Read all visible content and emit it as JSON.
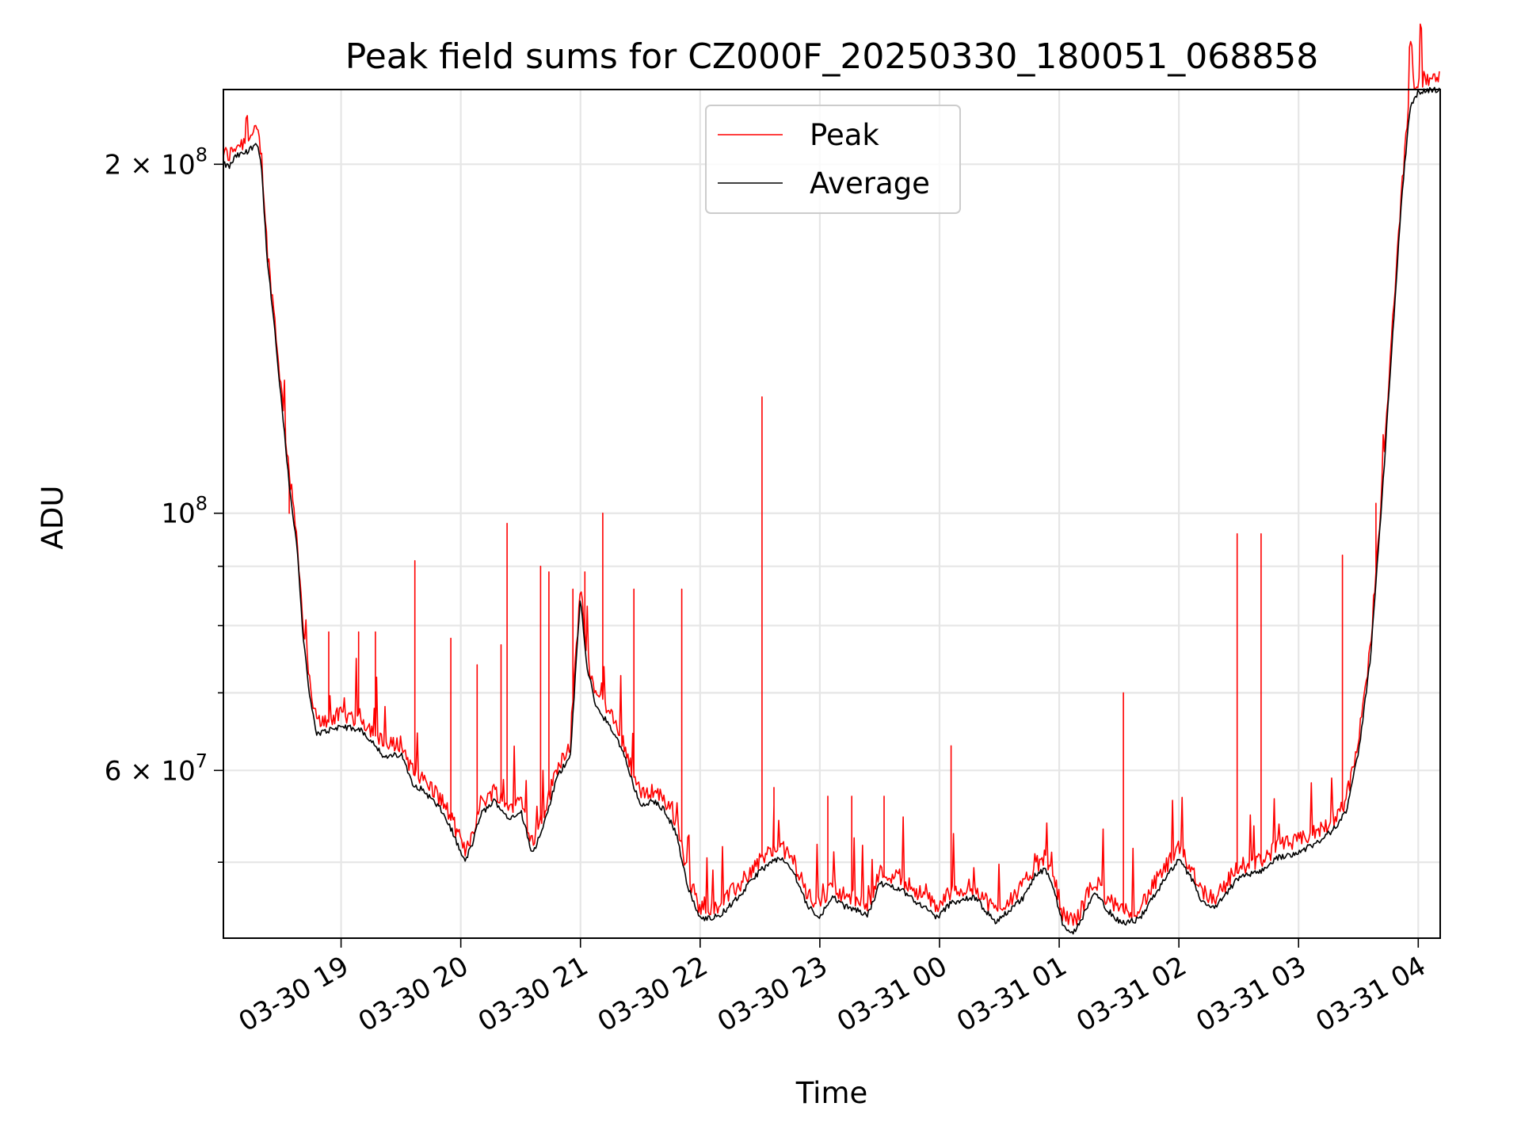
{
  "chart_data": {
    "type": "line",
    "title": "Peak field sums for CZ000F_20250330_180051_068858",
    "xlabel": "Time",
    "ylabel": "ADU",
    "y_scale": "log",
    "ylim": [
      43000000,
      232000000
    ],
    "xlim": [
      "2025-03-30 18:01",
      "2025-03-31 04:11"
    ],
    "x_ticks": [
      {
        "label": "03-30 19",
        "time": "2025-03-30 19:00"
      },
      {
        "label": "03-30 20",
        "time": "2025-03-30 20:00"
      },
      {
        "label": "03-30 21",
        "time": "2025-03-30 21:00"
      },
      {
        "label": "03-30 22",
        "time": "2025-03-30 22:00"
      },
      {
        "label": "03-30 23",
        "time": "2025-03-30 23:00"
      },
      {
        "label": "03-31 00",
        "time": "2025-03-31 00:00"
      },
      {
        "label": "03-31 01",
        "time": "2025-03-31 01:00"
      },
      {
        "label": "03-31 02",
        "time": "2025-03-31 02:00"
      },
      {
        "label": "03-31 03",
        "time": "2025-03-31 03:00"
      },
      {
        "label": "03-31 04",
        "time": "2025-03-31 04:00"
      }
    ],
    "y_major_ticks": [
      {
        "value": 60000000,
        "mantissa": "6",
        "exponent": "7"
      },
      {
        "value": 100000000,
        "mantissa": "",
        "exponent": "8"
      },
      {
        "value": 200000000,
        "mantissa": "2",
        "exponent": "8"
      }
    ],
    "y_minor_ticks": [
      50000000,
      70000000,
      80000000,
      90000000
    ],
    "grid": true,
    "legend": {
      "placement": "top-center",
      "entries": [
        {
          "name": "Peak",
          "color": "#ff0000"
        },
        {
          "name": "Average",
          "color": "#000000"
        }
      ]
    },
    "series": [
      {
        "name": "Average",
        "color": "#000000",
        "points": [
          [
            "2025-03-30 18:01",
            200000000
          ],
          [
            "2025-03-30 18:04",
            199000000
          ],
          [
            "2025-03-30 18:07",
            203000000
          ],
          [
            "2025-03-30 18:13",
            205000000
          ],
          [
            "2025-03-30 18:18",
            209000000
          ],
          [
            "2025-03-30 18:20",
            200000000
          ],
          [
            "2025-03-30 18:23",
            165000000
          ],
          [
            "2025-03-30 18:26",
            148000000
          ],
          [
            "2025-03-30 18:30",
            125000000
          ],
          [
            "2025-03-30 18:34",
            106000000
          ],
          [
            "2025-03-30 18:38",
            93000000
          ],
          [
            "2025-03-30 18:41",
            78000000
          ],
          [
            "2025-03-30 18:45",
            68000000
          ],
          [
            "2025-03-30 18:48",
            64500000
          ],
          [
            "2025-03-30 19:00",
            65500000
          ],
          [
            "2025-03-30 19:10",
            65000000
          ],
          [
            "2025-03-30 19:16",
            63500000
          ],
          [
            "2025-03-30 19:22",
            61500000
          ],
          [
            "2025-03-30 19:30",
            62000000
          ],
          [
            "2025-03-30 19:36",
            58500000
          ],
          [
            "2025-03-30 19:42",
            57500000
          ],
          [
            "2025-03-30 19:50",
            55500000
          ],
          [
            "2025-03-30 19:55",
            53500000
          ],
          [
            "2025-03-30 20:02",
            50000000
          ],
          [
            "2025-03-30 20:06",
            52000000
          ],
          [
            "2025-03-30 20:10",
            55000000
          ],
          [
            "2025-03-30 20:17",
            56500000
          ],
          [
            "2025-03-30 20:24",
            54500000
          ],
          [
            "2025-03-30 20:30",
            55500000
          ],
          [
            "2025-03-30 20:36",
            50800000
          ],
          [
            "2025-03-30 20:42",
            54000000
          ],
          [
            "2025-03-30 20:48",
            59000000
          ],
          [
            "2025-03-30 20:55",
            62000000
          ],
          [
            "2025-03-30 21:00",
            85000000
          ],
          [
            "2025-03-30 21:03",
            74000000
          ],
          [
            "2025-03-30 21:08",
            68000000
          ],
          [
            "2025-03-30 21:15",
            65500000
          ],
          [
            "2025-03-30 21:21",
            62500000
          ],
          [
            "2025-03-30 21:27",
            58000000
          ],
          [
            "2025-03-30 21:31",
            55800000
          ],
          [
            "2025-03-30 21:36",
            56500000
          ],
          [
            "2025-03-30 21:42",
            55500000
          ],
          [
            "2025-03-30 21:48",
            53000000
          ],
          [
            "2025-03-30 21:54",
            47500000
          ],
          [
            "2025-03-30 22:00",
            44600000
          ],
          [
            "2025-03-30 22:10",
            45000000
          ],
          [
            "2025-03-30 22:20",
            46800000
          ],
          [
            "2025-03-30 22:30",
            49200000
          ],
          [
            "2025-03-30 22:40",
            50500000
          ],
          [
            "2025-03-30 22:47",
            49000000
          ],
          [
            "2025-03-30 22:54",
            45800000
          ],
          [
            "2025-03-30 23:00",
            44800000
          ],
          [
            "2025-03-30 23:06",
            46800000
          ],
          [
            "2025-03-30 23:12",
            45800000
          ],
          [
            "2025-03-30 23:18",
            45500000
          ],
          [
            "2025-03-30 23:24",
            45000000
          ],
          [
            "2025-03-30 23:30",
            47900000
          ],
          [
            "2025-03-30 23:40",
            47500000
          ],
          [
            "2025-03-30 23:48",
            46300000
          ],
          [
            "2025-03-30 23:59",
            44800000
          ],
          [
            "2025-03-31 00:06",
            46200000
          ],
          [
            "2025-03-31 00:18",
            46600000
          ],
          [
            "2025-03-31 00:24",
            45200000
          ],
          [
            "2025-03-31 00:28",
            44400000
          ],
          [
            "2025-03-31 00:34",
            45300000
          ],
          [
            "2025-03-31 00:42",
            46600000
          ],
          [
            "2025-03-31 00:48",
            48700000
          ],
          [
            "2025-03-31 00:53",
            49300000
          ],
          [
            "2025-03-31 00:58",
            47000000
          ],
          [
            "2025-03-31 01:02",
            44000000
          ],
          [
            "2025-03-31 01:08",
            43500000
          ],
          [
            "2025-03-31 01:16",
            46500000
          ],
          [
            "2025-03-31 01:19",
            47000000
          ],
          [
            "2025-03-31 01:24",
            45500000
          ],
          [
            "2025-03-31 01:31",
            44300000
          ],
          [
            "2025-03-31 01:40",
            44600000
          ],
          [
            "2025-03-31 01:48",
            46900000
          ],
          [
            "2025-03-31 01:54",
            48600000
          ],
          [
            "2025-03-31 02:00",
            50200000
          ],
          [
            "2025-03-31 02:06",
            48500000
          ],
          [
            "2025-03-31 02:12",
            46100000
          ],
          [
            "2025-03-31 02:18",
            45600000
          ],
          [
            "2025-03-31 02:24",
            47000000
          ],
          [
            "2025-03-31 02:30",
            48500000
          ],
          [
            "2025-03-31 02:40",
            49000000
          ],
          [
            "2025-03-31 02:50",
            50500000
          ],
          [
            "2025-03-31 03:00",
            51000000
          ],
          [
            "2025-03-31 03:10",
            52000000
          ],
          [
            "2025-03-31 03:18",
            53500000
          ],
          [
            "2025-03-31 03:24",
            55500000
          ],
          [
            "2025-03-31 03:30",
            62000000
          ],
          [
            "2025-03-31 03:36",
            75000000
          ],
          [
            "2025-03-31 03:43",
            110000000
          ],
          [
            "2025-03-31 03:48",
            150000000
          ],
          [
            "2025-03-31 03:52",
            190000000
          ],
          [
            "2025-03-31 03:56",
            225000000
          ],
          [
            "2025-03-31 04:00",
            231000000
          ],
          [
            "2025-03-31 04:11",
            232000000
          ]
        ]
      },
      {
        "name": "Peak",
        "color": "#ff0000",
        "spikes": [
          [
            "2025-03-30 18:34",
            100000000
          ],
          [
            "2025-03-30 18:54",
            79000000
          ],
          [
            "2025-03-30 19:09",
            79000000
          ],
          [
            "2025-03-30 19:17",
            79000000
          ],
          [
            "2025-03-30 19:37",
            91000000
          ],
          [
            "2025-03-30 19:55",
            78000000
          ],
          [
            "2025-03-30 20:08",
            74000000
          ],
          [
            "2025-03-30 20:20",
            77000000
          ],
          [
            "2025-03-30 20:23",
            98000000
          ],
          [
            "2025-03-30 20:40",
            90000000
          ],
          [
            "2025-03-30 20:44",
            89000000
          ],
          [
            "2025-03-30 20:56",
            86000000
          ],
          [
            "2025-03-30 21:02",
            89000000
          ],
          [
            "2025-03-30 21:11",
            100000000
          ],
          [
            "2025-03-30 21:27",
            86000000
          ],
          [
            "2025-03-30 21:51",
            86000000
          ],
          [
            "2025-03-30 22:31",
            126000000
          ],
          [
            "2025-03-30 22:37",
            58000000
          ],
          [
            "2025-03-30 23:04",
            57000000
          ],
          [
            "2025-03-30 23:16",
            57000000
          ],
          [
            "2025-03-30 23:32",
            57000000
          ],
          [
            "2025-03-31 00:06",
            63000000
          ],
          [
            "2025-03-31 01:32",
            70000000
          ],
          [
            "2025-03-31 02:29",
            96000000
          ],
          [
            "2025-03-31 02:41",
            96000000
          ],
          [
            "2025-03-31 03:22",
            92000000
          ],
          [
            "2025-03-31 03:39",
            102000000
          ]
        ]
      }
    ]
  }
}
